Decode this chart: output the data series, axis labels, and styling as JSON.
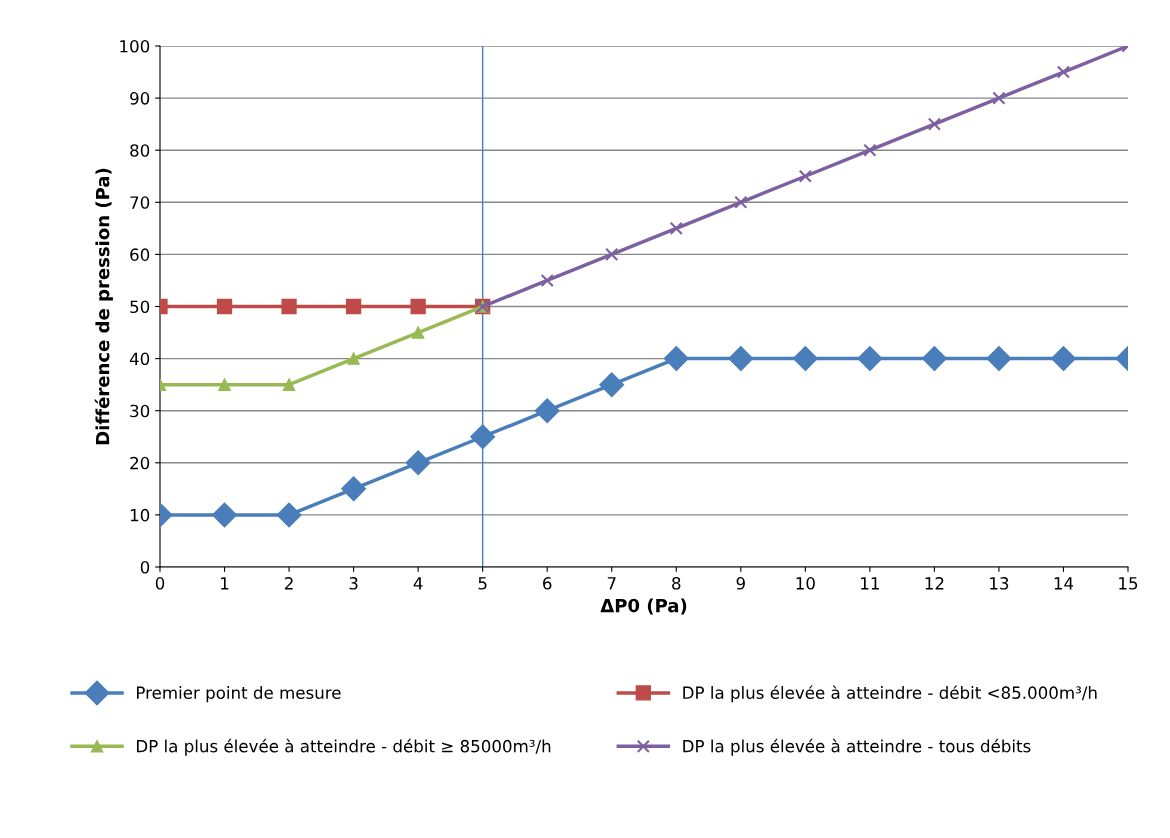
{
  "chart_data": {
    "type": "line",
    "xlabel": "ΔP0 (Pa)",
    "ylabel": "Différence de pression (Pa)",
    "xlim": [
      0,
      15
    ],
    "xticks": [
      0,
      1,
      2,
      3,
      4,
      5,
      6,
      7,
      8,
      9,
      10,
      11,
      12,
      13,
      14,
      15
    ],
    "ylim": [
      0,
      100
    ],
    "yticks": [
      0,
      10,
      20,
      30,
      40,
      50,
      60,
      70,
      80,
      90,
      100
    ],
    "grid": "y",
    "legend": "bottom",
    "ref_lines": [
      {
        "axis": "x",
        "value": 5,
        "color": "#4a7ebb"
      }
    ],
    "series": [
      {
        "name": "Premier point de mesure",
        "color": "#4a7ebb",
        "marker": "diamond",
        "x": [
          0,
          1,
          2,
          3,
          4,
          5,
          6,
          7,
          8,
          9,
          10,
          11,
          12,
          13,
          14,
          15
        ],
        "values": [
          10,
          10,
          10,
          15,
          20,
          25,
          30,
          35,
          40,
          40,
          40,
          40,
          40,
          40,
          40,
          40
        ]
      },
      {
        "name": "DP la plus élevée à atteindre - débit <85.000m³/h",
        "color": "#be4b48",
        "marker": "square",
        "x": [
          0,
          1,
          2,
          3,
          4,
          5
        ],
        "values": [
          50,
          50,
          50,
          50,
          50,
          50
        ]
      },
      {
        "name": "DP la plus élevée à atteindre - débit ≥ 85000m³/h",
        "color": "#98b954",
        "marker": "triangle",
        "x": [
          0,
          1,
          2,
          3,
          4,
          5
        ],
        "values": [
          35,
          35,
          35,
          40,
          45,
          50
        ]
      },
      {
        "name": "DP la plus élevée à atteindre - tous débits",
        "color": "#7d60a0",
        "marker": "cross",
        "x": [
          5,
          6,
          7,
          8,
          9,
          10,
          11,
          12,
          13,
          14,
          15
        ],
        "values": [
          50,
          55,
          60,
          65,
          70,
          75,
          80,
          85,
          90,
          95,
          100
        ]
      }
    ]
  }
}
